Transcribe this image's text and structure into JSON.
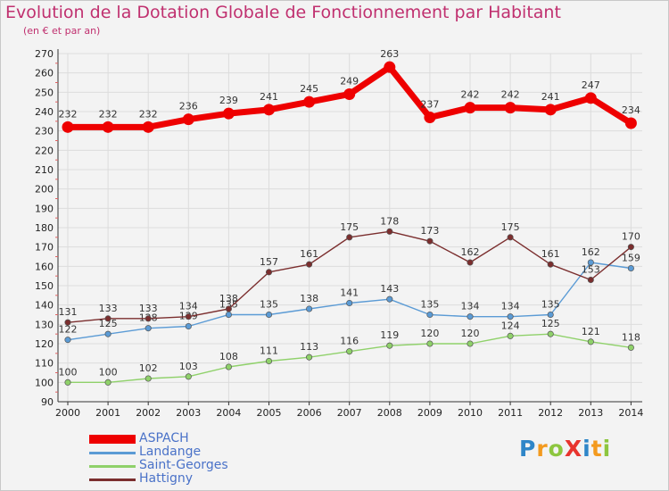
{
  "title": "Evolution de la Dotation Globale de Fonctionnement par Habitant",
  "subtitle": "(en € et par an)",
  "logo": {
    "text": "ProXiti",
    "letters": [
      "P",
      "r",
      "o",
      "X",
      "i",
      "t",
      "i"
    ],
    "colors": [
      "#2f86c8",
      "#f39a1e",
      "#8dc63f",
      "#e8342e",
      "#2f86c8",
      "#f39a1e",
      "#8dc63f"
    ]
  },
  "chart_data": {
    "type": "line",
    "title": "Evolution de la Dotation Globale de Fonctionnement par Habitant",
    "ylabel": "(en € et par an)",
    "xlabel": "",
    "ylim": [
      90,
      270
    ],
    "ytick_step": 10,
    "grid": true,
    "x": [
      "2000",
      "2001",
      "2002",
      "2003",
      "2004",
      "2005",
      "2006",
      "2007",
      "2008",
      "2009",
      "2010",
      "2011",
      "2012",
      "2013",
      "2014"
    ],
    "series": [
      {
        "name": "ASPACH",
        "color": "#ee0000",
        "emphasis": true,
        "values": [
          232,
          232,
          232,
          236,
          239,
          241,
          245,
          249,
          263,
          237,
          242,
          242,
          241,
          247,
          234
        ]
      },
      {
        "name": "Landange",
        "color": "#5b9bd5",
        "values": [
          122,
          125,
          128,
          129,
          135,
          135,
          138,
          141,
          143,
          135,
          134,
          134,
          135,
          162,
          159
        ]
      },
      {
        "name": "Saint-Georges",
        "color": "#8fd16a",
        "values": [
          100,
          100,
          102,
          103,
          108,
          111,
          113,
          116,
          119,
          120,
          120,
          124,
          125,
          121,
          118
        ]
      },
      {
        "name": "Hattigny",
        "color": "#7b2e2e",
        "values": [
          131,
          133,
          133,
          134,
          138,
          157,
          161,
          175,
          178,
          173,
          162,
          175,
          161,
          153,
          170
        ]
      }
    ],
    "legend_position": "bottom-left"
  }
}
